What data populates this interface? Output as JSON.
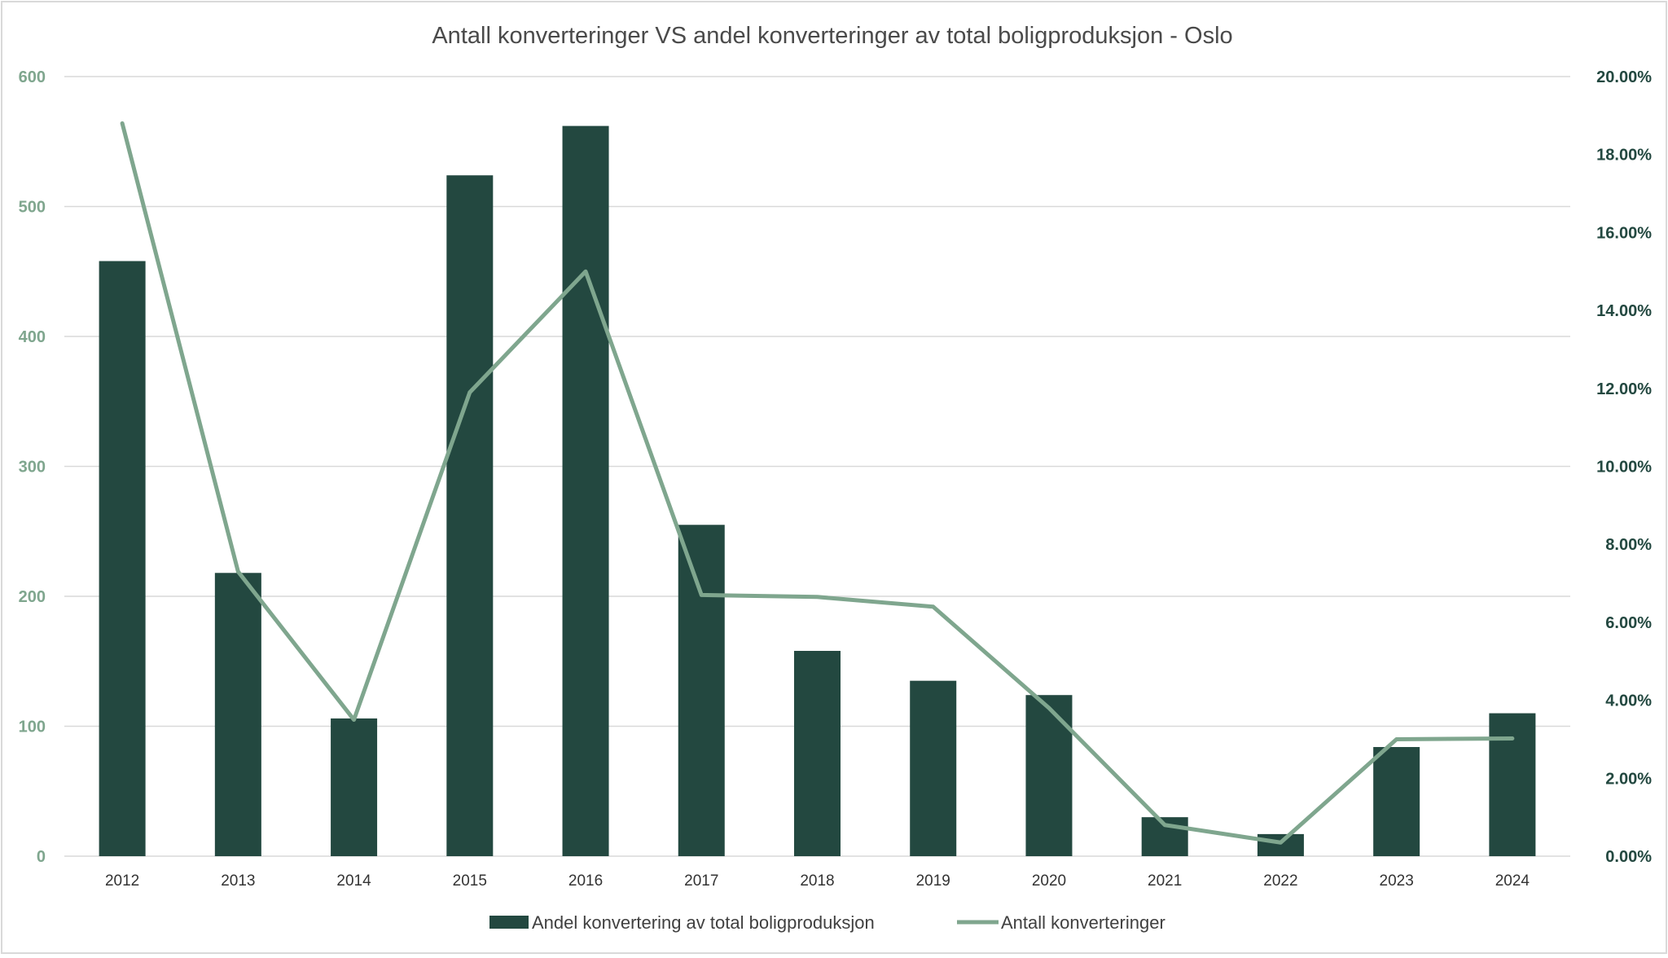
{
  "chart_data": {
    "type": "bar+line",
    "title": "Antall konverteringer VS andel konverteringer av total boligproduksjon - Oslo",
    "categories": [
      "2012",
      "2013",
      "2014",
      "2015",
      "2016",
      "2017",
      "2018",
      "2019",
      "2020",
      "2021",
      "2022",
      "2023",
      "2024"
    ],
    "y_left": {
      "min": 0,
      "max": 600,
      "ticks": [
        0,
        100,
        200,
        300,
        400,
        500,
        600
      ],
      "tick_labels": [
        "0",
        "100",
        "200",
        "300",
        "400",
        "500",
        "600"
      ]
    },
    "y_right": {
      "min": 0,
      "max": 20,
      "ticks": [
        0,
        2,
        4,
        6,
        8,
        10,
        12,
        14,
        16,
        18,
        20
      ],
      "tick_labels": [
        "0.00%",
        "2.00%",
        "4.00%",
        "6.00%",
        "8.00%",
        "10.00%",
        "12.00%",
        "14.00%",
        "16.00%",
        "18.00%",
        "20.00%"
      ]
    },
    "grid": true,
    "legend_position": "bottom",
    "series": [
      {
        "name": "Andel konvertering av total boligproduksjon",
        "type": "bar",
        "axis": "left",
        "color": "#234840",
        "values": [
          458,
          218,
          106,
          524,
          562,
          255,
          158,
          135,
          124,
          30,
          17,
          84,
          110
        ]
      },
      {
        "name": "Antall konverteringer",
        "type": "line",
        "axis": "right",
        "color": "#7fa68e",
        "values": [
          18.8,
          7.3,
          3.5,
          11.9,
          15.0,
          6.7,
          6.65,
          6.4,
          3.8,
          0.8,
          0.35,
          3.0,
          3.02
        ]
      }
    ]
  }
}
